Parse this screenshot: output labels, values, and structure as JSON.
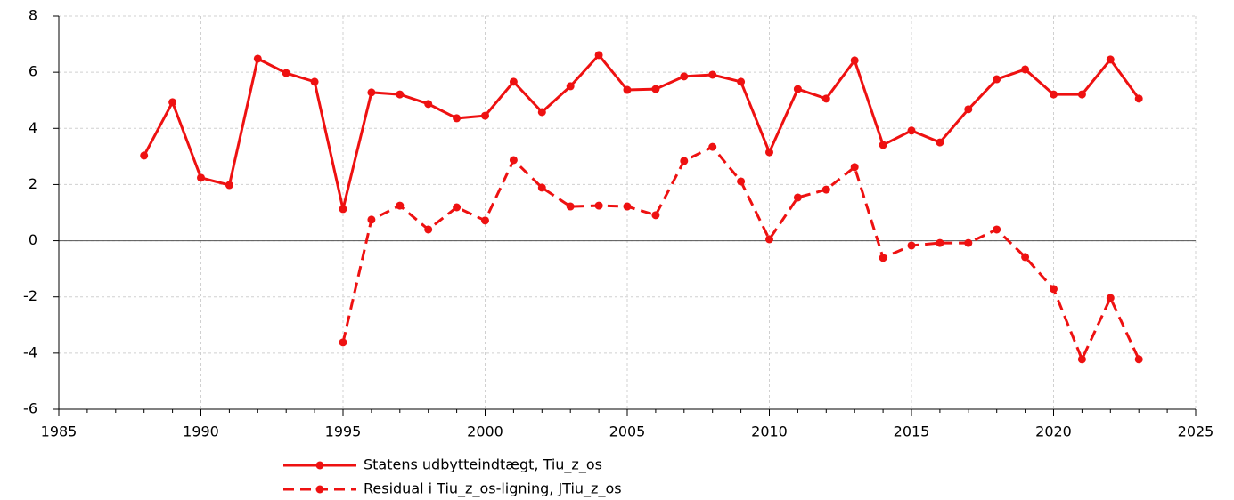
{
  "chart_data": {
    "type": "line",
    "x": [
      1988,
      1989,
      1990,
      1991,
      1992,
      1993,
      1994,
      1995,
      1996,
      1997,
      1998,
      1999,
      2000,
      2001,
      2002,
      2003,
      2004,
      2005,
      2006,
      2007,
      2008,
      2009,
      2010,
      2011,
      2012,
      2013,
      2014,
      2015,
      2016,
      2017,
      2018,
      2019,
      2020,
      2021,
      2022,
      2023
    ],
    "series": [
      {
        "name": "Statens udbytteindtægt, Tiu_z_os",
        "color": "#ee1111",
        "dash": false,
        "values": [
          3.03,
          4.93,
          2.24,
          1.98,
          6.48,
          5.97,
          5.66,
          1.13,
          5.28,
          5.21,
          4.87,
          4.36,
          4.45,
          5.66,
          4.58,
          5.5,
          6.61,
          5.37,
          5.4,
          5.85,
          5.91,
          5.66,
          3.15,
          5.4,
          5.06,
          6.42,
          3.41,
          3.92,
          3.5,
          4.68,
          5.75,
          6.1,
          5.21,
          5.21,
          6.45,
          5.06
        ]
      },
      {
        "name": "Residual i Tiu_z_os-ligning, JTiu_z_os",
        "color": "#ee1111",
        "dash": true,
        "values": [
          null,
          null,
          null,
          null,
          null,
          null,
          null,
          -3.62,
          0.75,
          1.25,
          0.4,
          1.19,
          0.72,
          2.87,
          1.89,
          1.22,
          1.25,
          1.22,
          0.91,
          2.84,
          3.34,
          2.11,
          0.05,
          1.54,
          1.82,
          2.62,
          -0.61,
          -0.17,
          -0.08,
          -0.08,
          0.4,
          -0.58,
          -1.72,
          -4.22,
          -2.04,
          -4.22
        ]
      }
    ],
    "xlim": [
      1985,
      2025
    ],
    "xticks": [
      1985,
      1990,
      1995,
      2000,
      2005,
      2010,
      2015,
      2020,
      2025
    ],
    "ylim": [
      -6,
      8
    ],
    "yticks": [
      -6,
      -4,
      -2,
      0,
      2,
      4,
      6,
      8
    ],
    "grid": true,
    "legend": "bottom"
  }
}
